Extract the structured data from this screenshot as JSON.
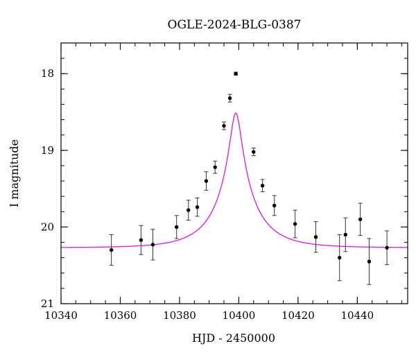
{
  "chart_data": {
    "type": "scatter",
    "title": "OGLE-2024-BLG-0387",
    "xlabel": "HJD - 2450000",
    "ylabel": "I magnitude",
    "xlim": [
      10340,
      10457
    ],
    "ylim": [
      21,
      17.6
    ],
    "y_inverted": true,
    "x_ticks": [
      10340,
      10360,
      10380,
      10400,
      10420,
      10440
    ],
    "y_ticks": [
      18,
      19,
      20,
      21
    ],
    "x_minor_step": 5,
    "y_minor_step": 0.2,
    "points": [
      {
        "x": 10357,
        "y": 20.3,
        "err": 0.2
      },
      {
        "x": 10367,
        "y": 20.17,
        "err": 0.19
      },
      {
        "x": 10371,
        "y": 20.23,
        "err": 0.2
      },
      {
        "x": 10379,
        "y": 20.0,
        "err": 0.15
      },
      {
        "x": 10383,
        "y": 19.78,
        "err": 0.13
      },
      {
        "x": 10386,
        "y": 19.74,
        "err": 0.12
      },
      {
        "x": 10389,
        "y": 19.4,
        "err": 0.12
      },
      {
        "x": 10392,
        "y": 19.22,
        "err": 0.08
      },
      {
        "x": 10395,
        "y": 18.68,
        "err": 0.05
      },
      {
        "x": 10397,
        "y": 18.32,
        "err": 0.05
      },
      {
        "x": 10399,
        "y": 18.0,
        "err": 0.02
      },
      {
        "x": 10405,
        "y": 19.02,
        "err": 0.05
      },
      {
        "x": 10408,
        "y": 19.46,
        "err": 0.08
      },
      {
        "x": 10412,
        "y": 19.72,
        "err": 0.13
      },
      {
        "x": 10419,
        "y": 19.96,
        "err": 0.18
      },
      {
        "x": 10426,
        "y": 20.13,
        "err": 0.2
      },
      {
        "x": 10434,
        "y": 20.4,
        "err": 0.3
      },
      {
        "x": 10436,
        "y": 20.1,
        "err": 0.22
      },
      {
        "x": 10441,
        "y": 19.9,
        "err": 0.21
      },
      {
        "x": 10444,
        "y": 20.45,
        "err": 0.3
      },
      {
        "x": 10450,
        "y": 20.27,
        "err": 0.22
      }
    ],
    "model": {
      "type": "microlensing-fit",
      "color": "#e011e0",
      "t0": 10399,
      "tE": 14,
      "u0": 0.13,
      "baseline_mag": 20.27,
      "fs": 0.6
    },
    "point_color": "#000000",
    "errorbar_color": "#333333"
  }
}
